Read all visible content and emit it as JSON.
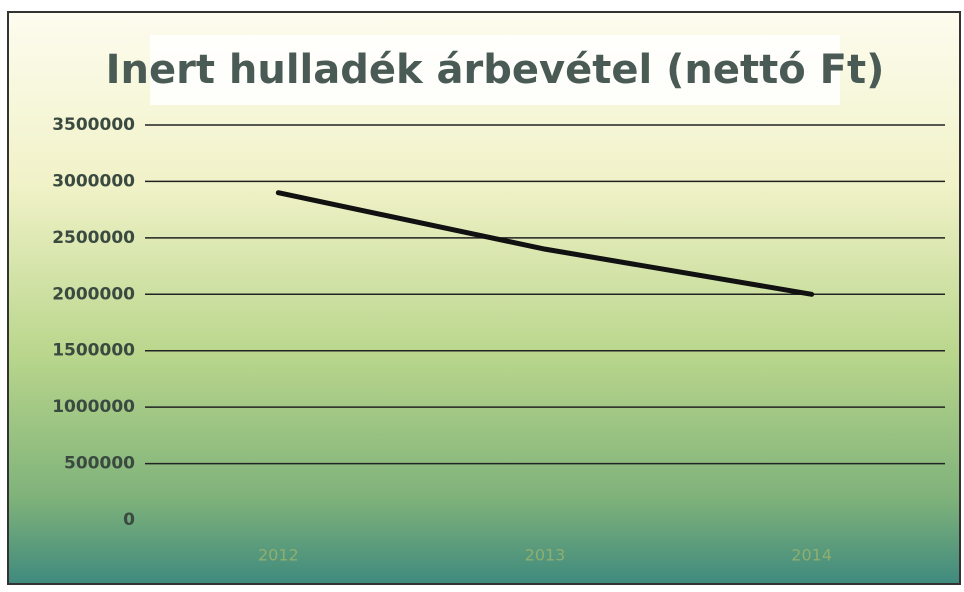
{
  "chart_data": {
    "type": "line",
    "title": "Inert hulladék árbevétel (nettó Ft)",
    "categories": [
      "2012",
      "2013",
      "2014"
    ],
    "series": [
      {
        "name": "Inert hulladék árbevétel",
        "color": "#111111",
        "values": [
          2900000,
          2400000,
          2000000
        ]
      }
    ],
    "ylim": [
      0,
      3500000
    ],
    "yticks": [
      0,
      500000,
      1000000,
      1500000,
      2000000,
      2500000,
      3000000,
      3500000
    ],
    "grid": true
  }
}
